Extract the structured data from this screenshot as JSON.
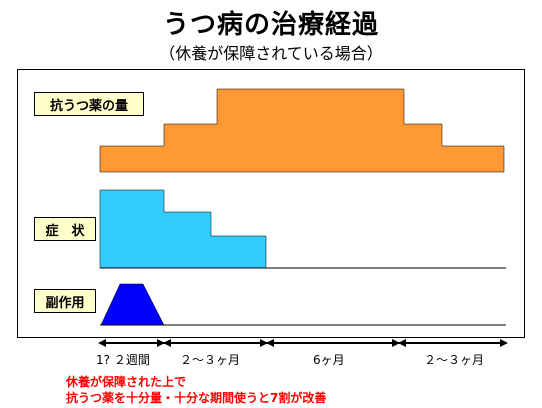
{
  "header": {
    "title": "うつ病の治療経過",
    "subtitle": "（休養が保障されている場合）"
  },
  "rows": {
    "medication": {
      "label": "抗うつ薬の量",
      "color": "#ff9933"
    },
    "symptoms": {
      "label": "症　状",
      "color": "#33ccff"
    },
    "side_effects": {
      "label": "副作用",
      "color": "#0000ff"
    }
  },
  "timeline": {
    "segments": [
      "1? ２週間",
      "２〜３ヶ月",
      "6ヶ月",
      "２〜３ヶ月"
    ]
  },
  "notes": {
    "line1": "休養が保障された上で",
    "line2": "抗うつ薬を十分量・十分な期間使うと7割が改善"
  },
  "colors": {
    "label_bg": "#ffffcc",
    "note_text": "#ff0000",
    "baseline": "#000000"
  }
}
